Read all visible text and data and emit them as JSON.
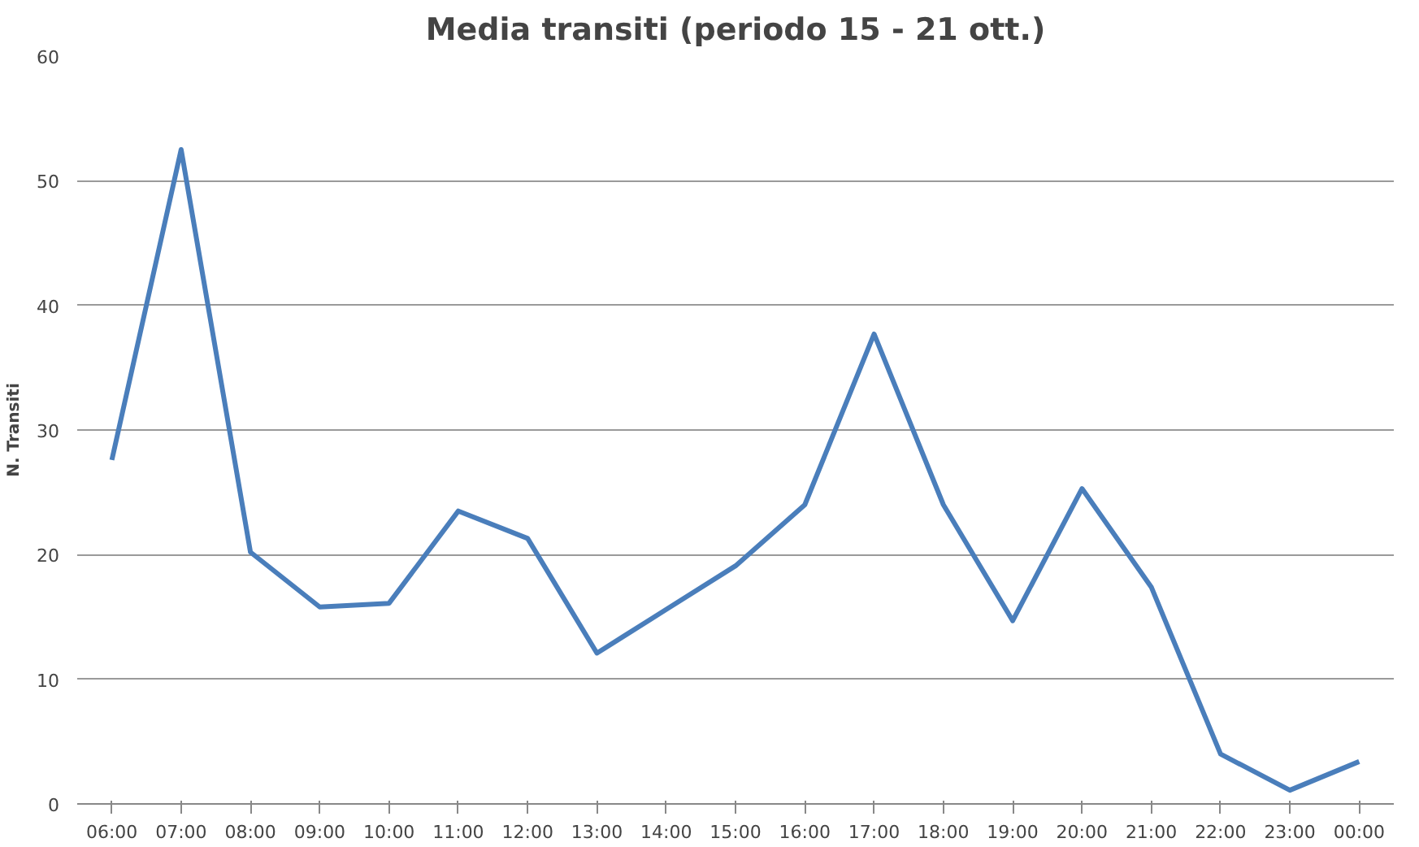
{
  "chart_data": {
    "type": "line",
    "title": "Media transiti (periodo 15 - 21 ott.)",
    "ylabel": "N. Transiti",
    "categories": [
      "06:00",
      "07:00",
      "08:00",
      "09:00",
      "10:00",
      "11:00",
      "12:00",
      "13:00",
      "14:00",
      "15:00",
      "16:00",
      "17:00",
      "18:00",
      "19:00",
      "20:00",
      "21:00",
      "22:00",
      "23:00",
      "00:00"
    ],
    "series": [
      {
        "color": "#4a7ebb",
        "values": [
          27.6,
          52.5,
          20.2,
          15.8,
          16.1,
          23.5,
          21.3,
          12.1,
          15.6,
          19.1,
          24.0,
          37.7,
          24.0,
          14.7,
          25.3,
          17.4,
          4.0,
          1.1,
          3.4
        ]
      }
    ],
    "ylim": [
      0,
      60
    ],
    "yticks": [
      0,
      10,
      20,
      30,
      40,
      50,
      60
    ],
    "grid": "y",
    "marker": "none",
    "line_style": "solid"
  }
}
